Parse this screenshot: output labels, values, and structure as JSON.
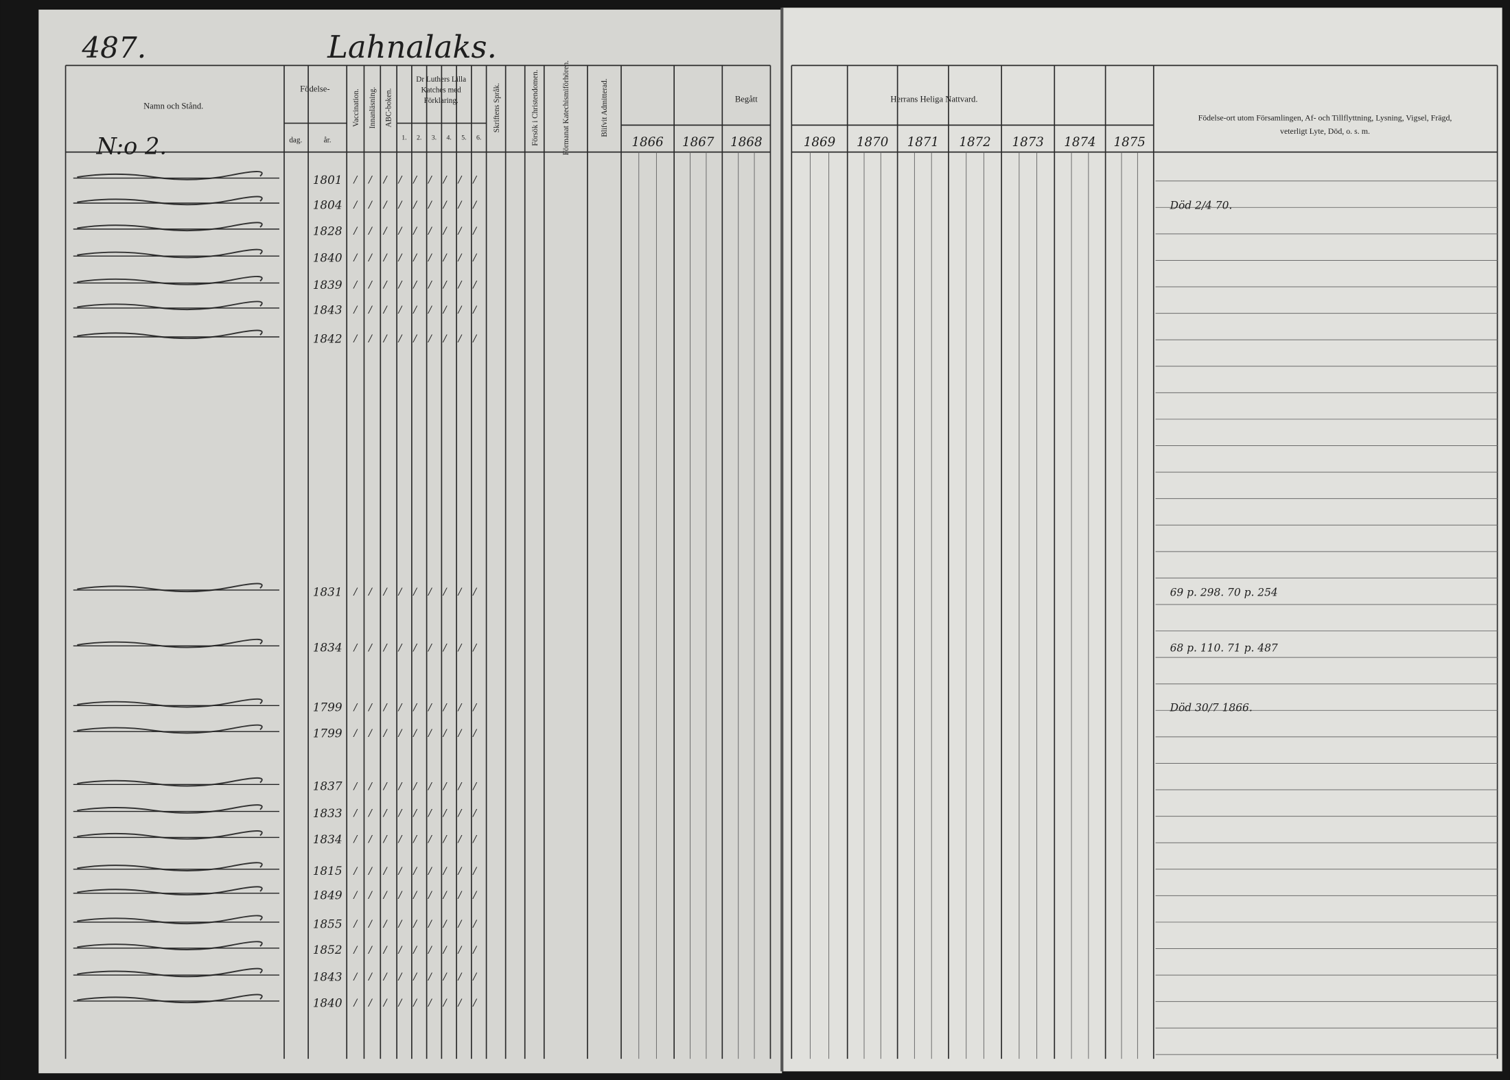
{
  "header": {
    "page_number": "487.",
    "village": "Lahnalaks.",
    "house_number": "N:o 2."
  },
  "columns": {
    "name": "Namn och Stånd.",
    "birth": "Födelse-",
    "birth_day": "dag.",
    "birth_year": "år.",
    "vaccination": "Vaccination.",
    "reading": "Innanläsning.",
    "abc": "ABC-boken.",
    "catechism": "Dr Luthers Lilla Katches med Förklaring.",
    "catechism_parts": [
      "1.",
      "2.",
      "3.",
      "4.",
      "5.",
      "6."
    ],
    "scripture": "Skriftens Språk.",
    "christianity": "Försök i Christendomen.",
    "catechism_exams": "Förmanat Katechismiförhören.",
    "admitted": "Blifvit Admitterad.",
    "communion_done": "Begått",
    "communion": "Herrans Heliga Nattvard.",
    "years": [
      "1866",
      "1867",
      "1868",
      "1869",
      "1870",
      "1871",
      "1872",
      "1873",
      "1874",
      "1875"
    ],
    "remarks": "Födelse-ort utom Församlingen, Af- och Tillflyttning, Lysning, Vigsel, Frägd, veterligt Lyte, Död, o. s. m."
  },
  "rows": [
    {
      "birth_year": "1801"
    },
    {
      "birth_year": "1804",
      "remarks": "Död 2/4 70."
    },
    {
      "birth_year": "1828"
    },
    {
      "birth_year": "1840"
    },
    {
      "birth_year": "1839"
    },
    {
      "birth_year": "1843"
    },
    {
      "birth_year": "1842"
    },
    {
      "birth_year": "1831",
      "remarks": "69 p. 298. 70 p. 254"
    },
    {
      "birth_year": "1834",
      "remarks": "68 p. 110. 71 p. 487"
    },
    {
      "birth_year": "1799",
      "remarks": "Död 30/7 1866."
    },
    {
      "birth_year": "1799"
    },
    {
      "birth_year": "1837"
    },
    {
      "birth_year": "1833"
    },
    {
      "birth_year": "1834"
    },
    {
      "birth_year": "1815"
    },
    {
      "birth_year": "1849"
    },
    {
      "birth_year": "1855"
    },
    {
      "birth_year": "1852"
    },
    {
      "birth_year": "1843"
    },
    {
      "birth_year": "1840"
    }
  ]
}
